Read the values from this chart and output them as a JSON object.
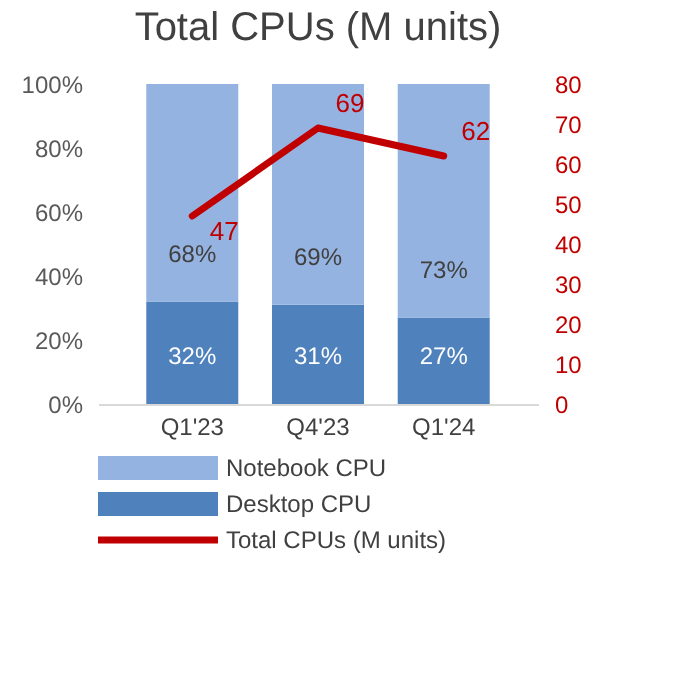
{
  "chart_data": {
    "type": "bar",
    "title": "Total CPUs (M units)",
    "categories": [
      "Q1'23",
      "Q4'23",
      "Q1'24"
    ],
    "stacked": true,
    "series": [
      {
        "name": "Desktop CPU",
        "color": "#4f81bd",
        "values": [
          32,
          31,
          27
        ],
        "value_labels": [
          "32%",
          "31%",
          "27%"
        ]
      },
      {
        "name": "Notebook CPU",
        "color": "#95b3e0",
        "values": [
          68,
          69,
          73
        ],
        "value_labels": [
          "68%",
          "69%",
          "73%"
        ]
      },
      {
        "name": "Total CPUs (M units)",
        "type": "line",
        "axis": "y2",
        "color": "#c00000",
        "values": [
          47,
          69,
          62
        ],
        "value_labels": [
          "47",
          "69",
          "62"
        ]
      }
    ],
    "ylim": [
      0,
      100
    ],
    "yticks": [
      {
        "value": 0,
        "label": "0%"
      },
      {
        "value": 20,
        "label": "20%"
      },
      {
        "value": 40,
        "label": "40%"
      },
      {
        "value": 60,
        "label": "60%"
      },
      {
        "value": 80,
        "label": "80%"
      },
      {
        "value": 100,
        "label": "100%"
      }
    ],
    "y2lim": [
      0,
      80
    ],
    "y2ticks": [
      0,
      10,
      20,
      30,
      40,
      50,
      60,
      70,
      80
    ],
    "grid": false,
    "legend": "bottom"
  }
}
